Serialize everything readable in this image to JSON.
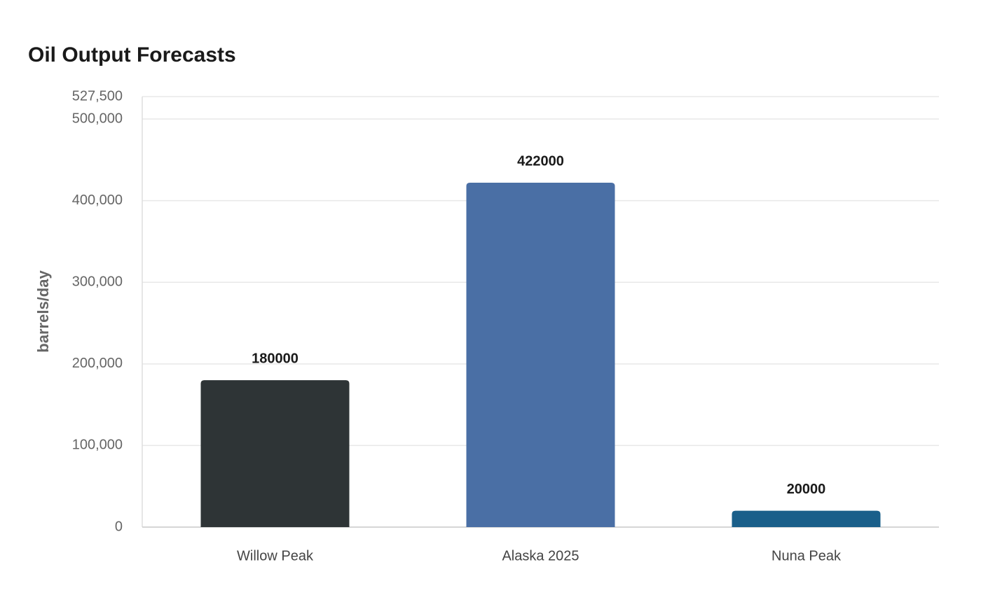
{
  "chart_data": {
    "type": "bar",
    "title": "Oil Output Forecasts",
    "y_label": "barrels/day",
    "categories": [
      "Willow Peak",
      "Alaska 2025",
      "Nuna Peak"
    ],
    "values": [
      180000,
      422000,
      20000
    ],
    "colors": [
      "#2e3436",
      "#4a6fa5",
      "#1a5f8a"
    ],
    "ylim": [
      0,
      527500
    ],
    "yticks": [
      0,
      {
        "value": 100000,
        "label": "100,000"
      },
      {
        "value": 200000,
        "label": "200,000"
      },
      {
        "value": 300000,
        "label": "300,000"
      },
      {
        "value": 400000,
        "label": "400,000"
      },
      {
        "value": 500000,
        "label": "500,000"
      },
      {
        "value": 527500,
        "label": "527,500"
      }
    ],
    "grid": true
  }
}
